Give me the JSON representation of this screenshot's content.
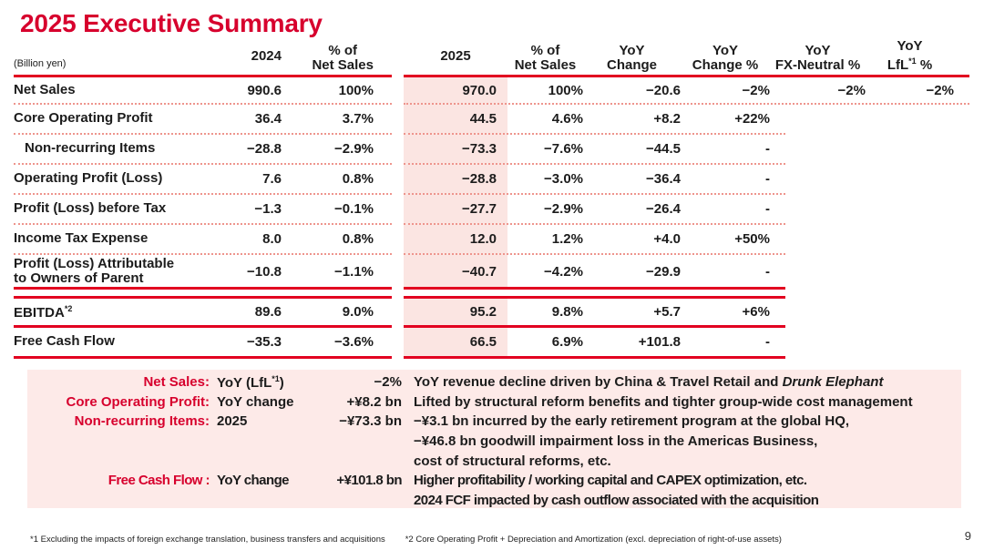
{
  "title": "2025 Executive Summary",
  "page_number": "9",
  "colors": {
    "accent_red": "#d7002d",
    "line_red": "#e20020",
    "dotted_red": "#ee958d",
    "pink_column": "#fbe5e2",
    "pink_box": "#fdeae8",
    "ink": "#1c1c1c"
  },
  "table": {
    "unit_label": "(Billion yen)",
    "headers": {
      "y2024": "2024",
      "pct_net_sales_1": "% of\nNet Sales",
      "y2025": "2025",
      "pct_net_sales_2": "% of\nNet Sales",
      "yoy_change": "YoY\nChange",
      "yoy_change_pct": "YoY\nChange %",
      "yoy_fx_neutral": "YoY\nFX-Neutral %",
      "yoy_lfl_line1": "YoY",
      "yoy_lfl_pre": "LfL",
      "yoy_lfl_sup": "*1",
      "yoy_lfl_post": " %"
    },
    "rows": [
      {
        "label": "Net Sales",
        "indent": false,
        "v2024": "990.6",
        "p2024": "100%",
        "v2025": "970.0",
        "p2025": "100%",
        "yoy": "−20.6",
        "yoyp": "−2%",
        "fx": "−2%",
        "lfl": "−2%"
      },
      {
        "label": "Core Operating Profit",
        "indent": false,
        "v2024": "36.4",
        "p2024": "3.7%",
        "v2025": "44.5",
        "p2025": "4.6%",
        "yoy": "+8.2",
        "yoyp": "+22%",
        "fx": "",
        "lfl": ""
      },
      {
        "label": "Non-recurring Items",
        "indent": true,
        "v2024": "−28.8",
        "p2024": "−2.9%",
        "v2025": "−73.3",
        "p2025": "−7.6%",
        "yoy": "−44.5",
        "yoyp": "-",
        "fx": "",
        "lfl": ""
      },
      {
        "label": "Operating Profit  (Loss)",
        "indent": false,
        "v2024": "7.6",
        "p2024": "0.8%",
        "v2025": "−28.8",
        "p2025": "−3.0%",
        "yoy": "−36.4",
        "yoyp": "-",
        "fx": "",
        "lfl": ""
      },
      {
        "label": "Profit (Loss) before Tax",
        "indent": false,
        "v2024": "−1.3",
        "p2024": "−0.1%",
        "v2025": "−27.7",
        "p2025": "−2.9%",
        "yoy": "−26.4",
        "yoyp": "-",
        "fx": "",
        "lfl": ""
      },
      {
        "label": "Income Tax Expense",
        "indent": false,
        "v2024": "8.0",
        "p2024": "0.8%",
        "v2025": "12.0",
        "p2025": "1.2%",
        "yoy": "+4.0",
        "yoyp": "+50%",
        "fx": "",
        "lfl": ""
      },
      {
        "label": "Profit (Loss) Attributable\nto Owners of Parent",
        "indent": false,
        "v2024": "−10.8",
        "p2024": "−1.1%",
        "v2025": "−40.7",
        "p2025": "−4.2%",
        "yoy": "−29.9",
        "yoyp": "-",
        "fx": "",
        "lfl": ""
      },
      {
        "label": "EBITDA",
        "label_sup": "*2",
        "indent": false,
        "v2024": "89.6",
        "p2024": "9.0%",
        "v2025": "95.2",
        "p2025": "9.8%",
        "yoy": "+5.7",
        "yoyp": "+6%",
        "fx": "",
        "lfl": ""
      },
      {
        "label": "Free Cash Flow",
        "indent": false,
        "v2024": "−35.3",
        "p2024": "−3.6%",
        "v2025": "66.5",
        "p2025": "6.9%",
        "yoy": "+101.8",
        "yoyp": "-",
        "fx": "",
        "lfl": ""
      }
    ]
  },
  "notes": {
    "rows": [
      {
        "label": "Net Sales:",
        "metric_pre": "YoY (LfL",
        "metric_sup": "*1",
        "metric_post": ")",
        "value": "−2%",
        "desc": "YoY revenue decline driven by China & Travel Retail and ",
        "desc_italic": "Drunk Elephant",
        "condensed": false
      },
      {
        "label": "Core Operating Profit:",
        "metric": "YoY change",
        "value": "+¥8.2 bn",
        "desc": "Lifted by structural reform benefits and tighter group-wide cost management",
        "condensed": false
      },
      {
        "label": "Non-recurring Items:",
        "metric": "2025",
        "value": "−¥73.3 bn",
        "desc": "−¥3.1 bn incurred by the early retirement program at the global HQ,",
        "condensed": false
      },
      {
        "label": "",
        "metric": "",
        "value": "",
        "desc": "−¥46.8 bn goodwill impairment loss in the Americas Business,",
        "condensed": false
      },
      {
        "label": "",
        "metric": "",
        "value": "",
        "desc": "cost of structural reforms, etc.",
        "condensed": false
      },
      {
        "label": "Free Cash Flow :",
        "metric": "YoY change",
        "value": "+¥101.8 bn",
        "desc": "Higher profitability / working capital and CAPEX optimization, etc.",
        "condensed": true
      },
      {
        "label": "",
        "metric": "",
        "value": "",
        "desc": "2024 FCF impacted by cash outflow associated with the acquisition",
        "condensed": true
      }
    ]
  },
  "footnotes": [
    "*1 Excluding the impacts of foreign exchange translation, business transfers and acquisitions",
    "*2 Core Operating Profit + Depreciation and Amortization (excl. depreciation of right-of-use assets)"
  ]
}
